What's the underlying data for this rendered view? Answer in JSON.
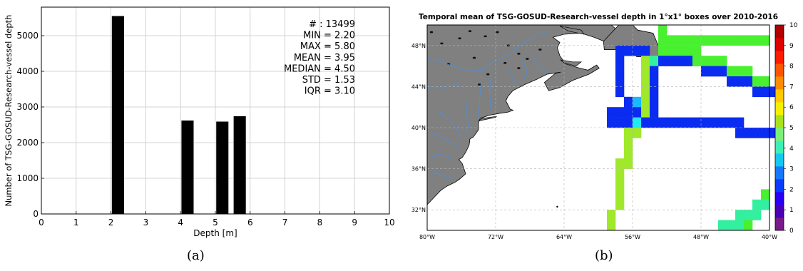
{
  "figure": {
    "label_a": "(a)",
    "label_b": "(b)"
  },
  "chart_data": [
    {
      "type": "bar",
      "title": "",
      "xlabel": "Depth [m]",
      "ylabel": "Number of TSG-GOSUD-Research-vessel depth",
      "xlim": [
        0,
        10
      ],
      "ylim": [
        0,
        5800
      ],
      "x_ticks": [
        "0",
        "1",
        "2",
        "3",
        "4",
        "5",
        "6",
        "7",
        "8",
        "9",
        "10"
      ],
      "y_ticks": [
        "0",
        "1000",
        "2000",
        "3000",
        "4000",
        "5000"
      ],
      "bars": [
        {
          "x": 2.2,
          "value": 5550
        },
        {
          "x": 4.2,
          "value": 2620
        },
        {
          "x": 5.2,
          "value": 2590
        },
        {
          "x": 5.7,
          "value": 2740
        }
      ],
      "bar_width": 0.35,
      "bar_color": "#000000",
      "grid": true,
      "stats": [
        "# : 13499",
        "MIN = 2.20",
        "MAX = 5.80",
        "MEAN = 3.95",
        "MEDIAN = 4.50",
        "STD = 1.53",
        "IQR = 3.10"
      ]
    },
    {
      "type": "heatmap",
      "title": "Temporal mean of TSG-GOSUD-Research-vessel depth in 1°x1° boxes over 2010-2016",
      "xlim": [
        -80,
        -40
      ],
      "ylim": [
        30,
        50
      ],
      "x_ticks": [
        "80°W",
        "72°W",
        "64°W",
        "56°W",
        "48°W",
        "40°W"
      ],
      "y_ticks": [
        "32°N",
        "36°N",
        "40°N",
        "44°N",
        "48°N"
      ],
      "grid": true,
      "land_color": "#808080",
      "river_color": "#4f8fd6",
      "colorbar": {
        "min": 0,
        "max": 10,
        "ticks": [
          "0",
          "1",
          "2",
          "3",
          "4",
          "5",
          "6",
          "7",
          "8",
          "9",
          "10"
        ],
        "colormap": "jet"
      },
      "cells": [
        {
          "lon": -53,
          "lat": 49,
          "value": 5.0
        },
        {
          "lon": -53,
          "lat": 48,
          "value": 5.0
        },
        {
          "lon": -52,
          "lat": 48,
          "value": 5.0
        },
        {
          "lon": -51,
          "lat": 48,
          "value": 5.0
        },
        {
          "lon": -50,
          "lat": 48,
          "value": 5.0
        },
        {
          "lon": -49,
          "lat": 48,
          "value": 5.0
        },
        {
          "lon": -48,
          "lat": 48,
          "value": 5.0
        },
        {
          "lon": -47,
          "lat": 48,
          "value": 5.0
        },
        {
          "lon": -46,
          "lat": 48,
          "value": 5.0
        },
        {
          "lon": -45,
          "lat": 48,
          "value": 5.0
        },
        {
          "lon": -44,
          "lat": 48,
          "value": 5.0
        },
        {
          "lon": -43,
          "lat": 48,
          "value": 5.0
        },
        {
          "lon": -42,
          "lat": 48,
          "value": 5.0
        },
        {
          "lon": -41,
          "lat": 48,
          "value": 5.0
        },
        {
          "lon": -53,
          "lat": 47,
          "value": 5.0
        },
        {
          "lon": -52,
          "lat": 47,
          "value": 5.0
        },
        {
          "lon": -51,
          "lat": 47,
          "value": 5.0
        },
        {
          "lon": -50,
          "lat": 47,
          "value": 5.0
        },
        {
          "lon": -49,
          "lat": 47,
          "value": 5.0
        },
        {
          "lon": -58,
          "lat": 47,
          "value": 2.0
        },
        {
          "lon": -57,
          "lat": 47,
          "value": 2.0
        },
        {
          "lon": -56,
          "lat": 47,
          "value": 2.0
        },
        {
          "lon": -55,
          "lat": 47,
          "value": 2.0
        },
        {
          "lon": -58,
          "lat": 46,
          "value": 2.0
        },
        {
          "lon": -55,
          "lat": 46,
          "value": 5.5
        },
        {
          "lon": -54,
          "lat": 46,
          "value": 4.5
        },
        {
          "lon": -53,
          "lat": 46,
          "value": 2.0
        },
        {
          "lon": -52,
          "lat": 46,
          "value": 2.0
        },
        {
          "lon": -51,
          "lat": 46,
          "value": 2.0
        },
        {
          "lon": -50,
          "lat": 46,
          "value": 2.0
        },
        {
          "lon": -49,
          "lat": 46,
          "value": 5.0
        },
        {
          "lon": -48,
          "lat": 46,
          "value": 5.0
        },
        {
          "lon": -47,
          "lat": 46,
          "value": 5.0
        },
        {
          "lon": -46,
          "lat": 46,
          "value": 5.0
        },
        {
          "lon": -58,
          "lat": 45,
          "value": 2.0
        },
        {
          "lon": -55,
          "lat": 45,
          "value": 5.5
        },
        {
          "lon": -54,
          "lat": 45,
          "value": 2.0
        },
        {
          "lon": -48,
          "lat": 45,
          "value": 2.0
        },
        {
          "lon": -47,
          "lat": 45,
          "value": 2.0
        },
        {
          "lon": -46,
          "lat": 45,
          "value": 2.0
        },
        {
          "lon": -45,
          "lat": 45,
          "value": 5.0
        },
        {
          "lon": -44,
          "lat": 45,
          "value": 5.0
        },
        {
          "lon": -43,
          "lat": 45,
          "value": 5.0
        },
        {
          "lon": -58,
          "lat": 44,
          "value": 2.0
        },
        {
          "lon": -55,
          "lat": 44,
          "value": 5.5
        },
        {
          "lon": -54,
          "lat": 44,
          "value": 2.0
        },
        {
          "lon": -45,
          "lat": 44,
          "value": 2.0
        },
        {
          "lon": -44,
          "lat": 44,
          "value": 2.0
        },
        {
          "lon": -43,
          "lat": 44,
          "value": 2.0
        },
        {
          "lon": -42,
          "lat": 44,
          "value": 5.0
        },
        {
          "lon": -41,
          "lat": 44,
          "value": 5.0
        },
        {
          "lon": -58,
          "lat": 43,
          "value": 2.0
        },
        {
          "lon": -55,
          "lat": 43,
          "value": 5.5
        },
        {
          "lon": -54,
          "lat": 43,
          "value": 2.0
        },
        {
          "lon": -42,
          "lat": 43,
          "value": 2.0
        },
        {
          "lon": -41,
          "lat": 43,
          "value": 2.0
        },
        {
          "lon": -40,
          "lat": 43,
          "value": 2.0
        },
        {
          "lon": -57,
          "lat": 42,
          "value": 2.0
        },
        {
          "lon": -56,
          "lat": 42,
          "value": 3.5
        },
        {
          "lon": -55,
          "lat": 42,
          "value": 5.5
        },
        {
          "lon": -54,
          "lat": 42,
          "value": 2.0
        },
        {
          "lon": -59,
          "lat": 41,
          "value": 2.0
        },
        {
          "lon": -58,
          "lat": 41,
          "value": 2.0
        },
        {
          "lon": -57,
          "lat": 41,
          "value": 2.0
        },
        {
          "lon": -56,
          "lat": 41,
          "value": 2.0
        },
        {
          "lon": -55,
          "lat": 41,
          "value": 5.5
        },
        {
          "lon": -54,
          "lat": 41,
          "value": 2.0
        },
        {
          "lon": -59,
          "lat": 40,
          "value": 2.0
        },
        {
          "lon": -58,
          "lat": 40,
          "value": 2.0
        },
        {
          "lon": -57,
          "lat": 40,
          "value": 2.0
        },
        {
          "lon": -56,
          "lat": 40,
          "value": 4.0
        },
        {
          "lon": -55,
          "lat": 40,
          "value": 2.0
        },
        {
          "lon": -54,
          "lat": 40,
          "value": 2.0
        },
        {
          "lon": -53,
          "lat": 40,
          "value": 2.0
        },
        {
          "lon": -52,
          "lat": 40,
          "value": 2.0
        },
        {
          "lon": -51,
          "lat": 40,
          "value": 2.0
        },
        {
          "lon": -50,
          "lat": 40,
          "value": 2.0
        },
        {
          "lon": -49,
          "lat": 40,
          "value": 2.0
        },
        {
          "lon": -48,
          "lat": 40,
          "value": 2.0
        },
        {
          "lon": -47,
          "lat": 40,
          "value": 2.0
        },
        {
          "lon": -46,
          "lat": 40,
          "value": 2.0
        },
        {
          "lon": -45,
          "lat": 40,
          "value": 2.0
        },
        {
          "lon": -44,
          "lat": 40,
          "value": 2.0
        },
        {
          "lon": -57,
          "lat": 39,
          "value": 5.5
        },
        {
          "lon": -56,
          "lat": 39,
          "value": 5.5
        },
        {
          "lon": -44,
          "lat": 39,
          "value": 2.0
        },
        {
          "lon": -43,
          "lat": 39,
          "value": 2.0
        },
        {
          "lon": -42,
          "lat": 39,
          "value": 2.0
        },
        {
          "lon": -41,
          "lat": 39,
          "value": 2.0
        },
        {
          "lon": -40,
          "lat": 39,
          "value": 2.0
        },
        {
          "lon": -57,
          "lat": 38,
          "value": 5.5
        },
        {
          "lon": -57,
          "lat": 37,
          "value": 5.5
        },
        {
          "lon": -58,
          "lat": 36,
          "value": 5.5
        },
        {
          "lon": -57,
          "lat": 36,
          "value": 5.5
        },
        {
          "lon": -58,
          "lat": 35,
          "value": 5.5
        },
        {
          "lon": -58,
          "lat": 34,
          "value": 5.5
        },
        {
          "lon": -58,
          "lat": 33,
          "value": 5.5
        },
        {
          "lon": -58,
          "lat": 32,
          "value": 5.5
        },
        {
          "lon": -59,
          "lat": 31,
          "value": 5.5
        },
        {
          "lon": -59,
          "lat": 30,
          "value": 5.5
        },
        {
          "lon": -41,
          "lat": 33,
          "value": 5.0
        },
        {
          "lon": -42,
          "lat": 32,
          "value": 4.5
        },
        {
          "lon": -41,
          "lat": 32,
          "value": 4.5
        },
        {
          "lon": -44,
          "lat": 31,
          "value": 4.5
        },
        {
          "lon": -43,
          "lat": 31,
          "value": 4.5
        },
        {
          "lon": -42,
          "lat": 31,
          "value": 4.5
        },
        {
          "lon": -46,
          "lat": 30,
          "value": 4.5
        },
        {
          "lon": -45,
          "lat": 30,
          "value": 4.5
        },
        {
          "lon": -44,
          "lat": 30,
          "value": 4.5
        },
        {
          "lon": -43,
          "lat": 30,
          "value": 5.0
        }
      ]
    }
  ]
}
